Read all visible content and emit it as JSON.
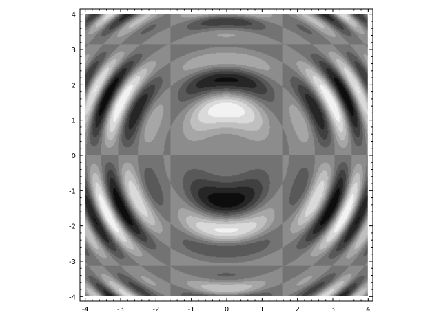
{
  "chart_data": {
    "type": "heatmap",
    "subtype": "filled-contour",
    "title": "",
    "xlabel": "",
    "ylabel": "",
    "xlim": [
      -4.14,
      4.14
    ],
    "ylim": [
      -4.14,
      4.14
    ],
    "x_ticks": [
      -4,
      -3,
      -2,
      -1,
      0,
      1,
      2,
      3,
      4
    ],
    "y_ticks": [
      -4,
      -3,
      -2,
      -1,
      0,
      1,
      2,
      3,
      4
    ],
    "x_tick_labels": [
      "-4",
      "-3",
      "-2",
      "-1",
      "0",
      "1",
      "2",
      "3",
      "4"
    ],
    "y_tick_labels": [
      "-4",
      "-3",
      "-2",
      "-1",
      "0",
      "1",
      "2",
      "3",
      "4"
    ],
    "data_extent": [
      -4,
      4,
      -4,
      4
    ],
    "contour_levels": 10,
    "colormap": "gray",
    "grid": false,
    "legend": "none",
    "pattern": "radial rings sign-flipped across the axes"
  }
}
